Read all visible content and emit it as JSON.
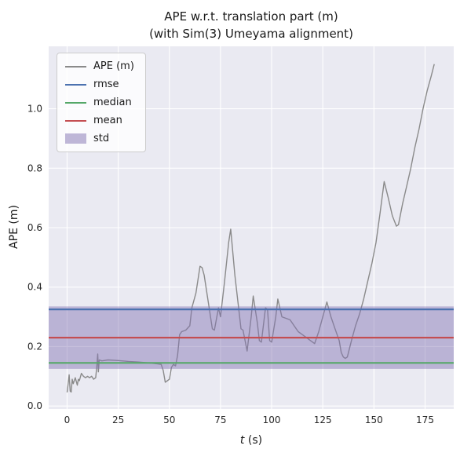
{
  "figure": {
    "title_line1": "APE w.r.t. translation part (m)",
    "title_line2": "(with Sim(3) Umeyama alignment)",
    "xlabel_var": "t",
    "xlabel_unit": " (s)",
    "ylabel": "APE (m)"
  },
  "chart_data": {
    "type": "line",
    "title": "APE w.r.t. translation part (m) (with Sim(3) Umeyama alignment)",
    "xlabel": "t (s)",
    "ylabel": "APE (m)",
    "xlim": [
      -9,
      189
    ],
    "ylim": [
      -0.01,
      1.21
    ],
    "xticks": [
      0,
      25,
      50,
      75,
      100,
      125,
      150,
      175
    ],
    "yticks": [
      0.0,
      0.2,
      0.4,
      0.6,
      0.8,
      1.0
    ],
    "grid": true,
    "legend_position": "upper left",
    "plot_bg": "#eaeaf2",
    "grid_color": "#ffffff",
    "tick_color": "#262626",
    "colors": {
      "ape": "#8a8a8a",
      "rmse": "#4c72b0",
      "median": "#55a868",
      "mean": "#c44e52",
      "std": "#8172b2"
    },
    "stats": {
      "rmse": 0.325,
      "median": 0.145,
      "mean": 0.23,
      "std_low": 0.125,
      "std_high": 0.335
    },
    "legend": [
      {
        "label": "APE (m)",
        "type": "line",
        "color": "#8a8a8a"
      },
      {
        "label": "rmse",
        "type": "line",
        "color": "#4c72b0"
      },
      {
        "label": "median",
        "type": "line",
        "color": "#55a868"
      },
      {
        "label": "mean",
        "type": "line",
        "color": "#c44e52"
      },
      {
        "label": "std",
        "type": "patch",
        "color": "#8172b2"
      }
    ],
    "series": [
      {
        "name": "APE (m)",
        "color": "#8a8a8a",
        "points": [
          [
            0,
            0.046
          ],
          [
            0.5,
            0.075
          ],
          [
            1,
            0.105
          ],
          [
            1.5,
            0.05
          ],
          [
            2,
            0.047
          ],
          [
            2.5,
            0.09
          ],
          [
            3,
            0.075
          ],
          [
            3.5,
            0.085
          ],
          [
            4,
            0.095
          ],
          [
            5,
            0.07
          ],
          [
            5.5,
            0.09
          ],
          [
            6,
            0.085
          ],
          [
            7,
            0.11
          ],
          [
            8,
            0.1
          ],
          [
            9,
            0.095
          ],
          [
            10,
            0.1
          ],
          [
            11,
            0.095
          ],
          [
            12,
            0.1
          ],
          [
            13,
            0.09
          ],
          [
            14,
            0.095
          ],
          [
            14.5,
            0.13
          ],
          [
            15,
            0.175
          ],
          [
            15.3,
            0.115
          ],
          [
            15.7,
            0.155
          ],
          [
            17,
            0.152
          ],
          [
            20,
            0.155
          ],
          [
            25,
            0.153
          ],
          [
            30,
            0.15
          ],
          [
            35,
            0.148
          ],
          [
            40,
            0.145
          ],
          [
            44,
            0.142
          ],
          [
            46,
            0.14
          ],
          [
            47,
            0.12
          ],
          [
            48,
            0.08
          ],
          [
            49,
            0.085
          ],
          [
            50,
            0.09
          ],
          [
            51,
            0.13
          ],
          [
            52,
            0.14
          ],
          [
            53,
            0.135
          ],
          [
            54,
            0.17
          ],
          [
            55,
            0.24
          ],
          [
            56,
            0.25
          ],
          [
            58,
            0.255
          ],
          [
            60,
            0.27
          ],
          [
            61,
            0.33
          ],
          [
            63,
            0.38
          ],
          [
            65,
            0.47
          ],
          [
            66,
            0.465
          ],
          [
            67,
            0.44
          ],
          [
            69,
            0.35
          ],
          [
            71,
            0.26
          ],
          [
            72,
            0.255
          ],
          [
            74,
            0.33
          ],
          [
            75,
            0.3
          ],
          [
            77,
            0.42
          ],
          [
            79,
            0.55
          ],
          [
            80,
            0.595
          ],
          [
            82,
            0.44
          ],
          [
            84,
            0.32
          ],
          [
            85,
            0.26
          ],
          [
            86,
            0.255
          ],
          [
            88,
            0.185
          ],
          [
            90,
            0.3
          ],
          [
            91,
            0.37
          ],
          [
            93,
            0.28
          ],
          [
            94,
            0.22
          ],
          [
            95,
            0.215
          ],
          [
            97,
            0.33
          ],
          [
            98,
            0.325
          ],
          [
            99,
            0.22
          ],
          [
            100,
            0.215
          ],
          [
            102,
            0.3
          ],
          [
            103,
            0.36
          ],
          [
            105,
            0.3
          ],
          [
            107,
            0.295
          ],
          [
            109,
            0.29
          ],
          [
            111,
            0.27
          ],
          [
            113,
            0.25
          ],
          [
            115,
            0.24
          ],
          [
            117,
            0.23
          ],
          [
            119,
            0.22
          ],
          [
            120,
            0.215
          ],
          [
            121,
            0.21
          ],
          [
            123,
            0.25
          ],
          [
            125,
            0.3
          ],
          [
            127,
            0.35
          ],
          [
            129,
            0.3
          ],
          [
            131,
            0.26
          ],
          [
            133,
            0.22
          ],
          [
            134,
            0.18
          ],
          [
            135,
            0.165
          ],
          [
            136,
            0.16
          ],
          [
            137,
            0.165
          ],
          [
            139,
            0.22
          ],
          [
            141,
            0.27
          ],
          [
            143,
            0.31
          ],
          [
            145,
            0.36
          ],
          [
            147,
            0.42
          ],
          [
            149,
            0.48
          ],
          [
            151,
            0.55
          ],
          [
            153,
            0.65
          ],
          [
            155,
            0.755
          ],
          [
            157,
            0.7
          ],
          [
            159,
            0.64
          ],
          [
            161,
            0.605
          ],
          [
            162,
            0.61
          ],
          [
            164,
            0.68
          ],
          [
            166,
            0.74
          ],
          [
            168,
            0.8
          ],
          [
            170,
            0.87
          ],
          [
            172,
            0.93
          ],
          [
            174,
            1.0
          ],
          [
            176,
            1.06
          ],
          [
            178,
            1.11
          ],
          [
            179.5,
            1.15
          ]
        ]
      }
    ]
  }
}
